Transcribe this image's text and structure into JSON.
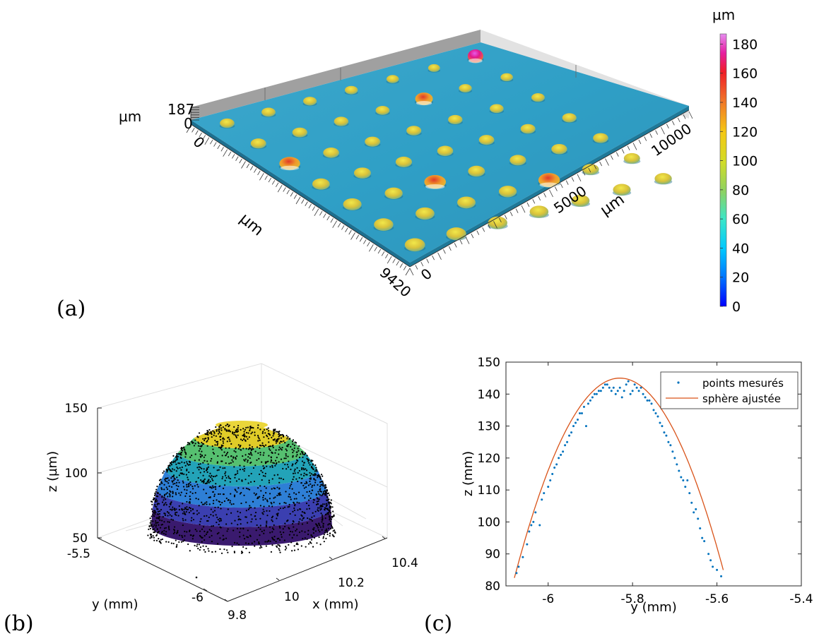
{
  "panels": {
    "a": "(a)",
    "b": "(b)",
    "c": "(c)"
  },
  "colors": {
    "surface": "#2f9fc6",
    "fit_line": "#d95319",
    "measured_points": "#0072bd",
    "point_cloud": "#000000"
  },
  "chart_data": [
    {
      "type": "surface3d",
      "panel": "(a)",
      "x_axis": {
        "label": "µm",
        "ticks": [
          "0",
          "9420"
        ]
      },
      "y_axis": {
        "label": "µm",
        "ticks": [
          "0",
          "5000",
          "10000"
        ]
      },
      "z_axis": {
        "label": "µm",
        "ticks": [
          "0",
          "187"
        ]
      },
      "colorbar": {
        "label": "µm",
        "range": [
          0,
          187
        ],
        "ticks": [
          0,
          20,
          40,
          60,
          80,
          100,
          120,
          140,
          160,
          180
        ],
        "colormap": [
          "#0000ff",
          "#00b4ff",
          "#3ce6c8",
          "#7ad27a",
          "#d2dc28",
          "#f0c814",
          "#f08c1e",
          "#f01e1e",
          "#e61ea0",
          "#e678f0"
        ]
      },
      "grid": {
        "rows": 7,
        "cols": 7
      },
      "tall_bumps": [
        {
          "row": 0,
          "col": 6,
          "height_um": 187
        },
        {
          "row": 1,
          "col": 4,
          "height_um": 140
        },
        {
          "row": 5,
          "col": 4,
          "height_um": 120
        },
        {
          "row": 2,
          "col": 0,
          "height_um": 110
        },
        {
          "row": 4,
          "col": 2,
          "height_um": 110
        }
      ]
    },
    {
      "type": "scatter3d",
      "panel": "(b)",
      "xlabel": "x (mm)",
      "ylabel": "y (mm)",
      "zlabel": "z (µm)",
      "x_ticks": [
        "9.8",
        "10",
        "10.2",
        "10.4"
      ],
      "y_ticks": [
        "-6",
        "-5.5"
      ],
      "z_ticks": [
        "50",
        "100",
        "150"
      ],
      "zlim": [
        50,
        150
      ],
      "dome_apex_z": 140,
      "grid": true
    },
    {
      "type": "line",
      "panel": "(c)",
      "xlabel": "y (mm)",
      "ylabel": "z (mm)",
      "xlim": [
        -6.1,
        -5.4
      ],
      "ylim": [
        80,
        150
      ],
      "x_ticks": [
        -6,
        -5.8,
        -5.6,
        -5.4
      ],
      "x_tick_labels": [
        "-6",
        "-5.8",
        "-5.6",
        "-5.4"
      ],
      "y_ticks": [
        80,
        90,
        100,
        110,
        120,
        130,
        140,
        150
      ],
      "legend": "top-right",
      "series": [
        {
          "name": "points mesurés",
          "style": "markers",
          "points": [
            [
              -6.075,
              84
            ],
            [
              -6.07,
              86
            ],
            [
              -6.06,
              89
            ],
            [
              -6.05,
              93
            ],
            [
              -6.045,
              97
            ],
            [
              -6.04,
              99
            ],
            [
              -6.035,
              100
            ],
            [
              -6.03,
              103
            ],
            [
              -6.02,
              99
            ],
            [
              -6.015,
              107
            ],
            [
              -6.01,
              109
            ],
            [
              -6.0,
              111
            ],
            [
              -5.995,
              113
            ],
            [
              -5.99,
              115
            ],
            [
              -5.985,
              117
            ],
            [
              -5.98,
              118
            ],
            [
              -5.975,
              120
            ],
            [
              -5.97,
              121
            ],
            [
              -5.965,
              122
            ],
            [
              -5.96,
              124
            ],
            [
              -5.955,
              125
            ],
            [
              -5.95,
              127
            ],
            [
              -5.945,
              128
            ],
            [
              -5.94,
              130
            ],
            [
              -5.935,
              131
            ],
            [
              -5.93,
              132
            ],
            [
              -5.925,
              134
            ],
            [
              -5.92,
              134
            ],
            [
              -5.915,
              136
            ],
            [
              -5.91,
              130
            ],
            [
              -5.905,
              137
            ],
            [
              -5.9,
              138
            ],
            [
              -5.895,
              139
            ],
            [
              -5.89,
              140
            ],
            [
              -5.885,
              140
            ],
            [
              -5.88,
              141
            ],
            [
              -5.875,
              141
            ],
            [
              -5.87,
              142
            ],
            [
              -5.865,
              143
            ],
            [
              -5.86,
              143
            ],
            [
              -5.855,
              142
            ],
            [
              -5.85,
              141
            ],
            [
              -5.845,
              142
            ],
            [
              -5.84,
              140
            ],
            [
              -5.835,
              141
            ],
            [
              -5.83,
              142
            ],
            [
              -5.825,
              139
            ],
            [
              -5.82,
              141
            ],
            [
              -5.815,
              143
            ],
            [
              -5.81,
              144
            ],
            [
              -5.805,
              140
            ],
            [
              -5.8,
              141
            ],
            [
              -5.795,
              143
            ],
            [
              -5.79,
              142
            ],
            [
              -5.785,
              141
            ],
            [
              -5.78,
              142
            ],
            [
              -5.775,
              140
            ],
            [
              -5.77,
              139
            ],
            [
              -5.765,
              138
            ],
            [
              -5.76,
              138
            ],
            [
              -5.755,
              137
            ],
            [
              -5.75,
              135
            ],
            [
              -5.745,
              134
            ],
            [
              -5.74,
              133
            ],
            [
              -5.735,
              131
            ],
            [
              -5.73,
              130
            ],
            [
              -5.725,
              128
            ],
            [
              -5.72,
              127
            ],
            [
              -5.715,
              125
            ],
            [
              -5.71,
              124
            ],
            [
              -5.705,
              122
            ],
            [
              -5.7,
              120
            ],
            [
              -5.695,
              118
            ],
            [
              -5.69,
              116
            ],
            [
              -5.685,
              114
            ],
            [
              -5.68,
              113
            ],
            [
              -5.675,
              111
            ],
            [
              -5.67,
              113
            ],
            [
              -5.665,
              109
            ],
            [
              -5.66,
              106
            ],
            [
              -5.655,
              103
            ],
            [
              -5.65,
              104
            ],
            [
              -5.645,
              101
            ],
            [
              -5.64,
              98
            ],
            [
              -5.635,
              95
            ],
            [
              -5.63,
              94
            ],
            [
              -5.62,
              90
            ],
            [
              -5.615,
              88
            ],
            [
              -5.61,
              86
            ],
            [
              -5.6,
              85
            ],
            [
              -5.59,
              83
            ]
          ]
        },
        {
          "name": "sphère ajustée",
          "style": "line",
          "center_y": -5.83,
          "apex_z": 145,
          "y_range": [
            -6.08,
            -5.585
          ],
          "z_at_ends": 82.5
        }
      ]
    }
  ]
}
